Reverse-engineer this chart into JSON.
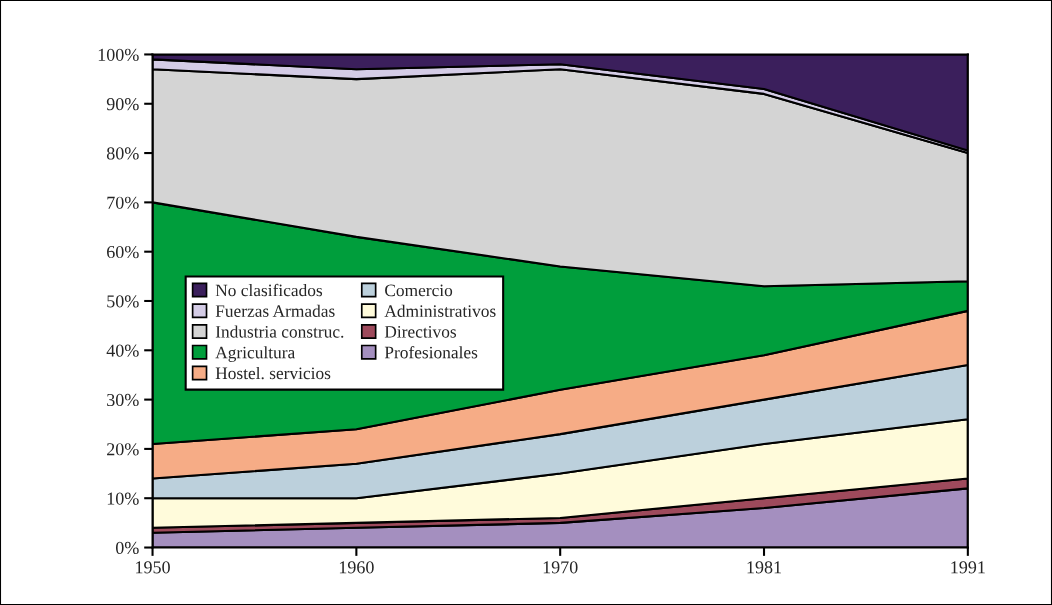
{
  "chart_data": {
    "type": "area",
    "stacked": true,
    "categories": [
      "1950",
      "1960",
      "1970",
      "1981",
      "1991"
    ],
    "series": [
      {
        "name": "Profesionales",
        "color": "#a48fbf",
        "values": [
          3,
          4,
          5,
          8,
          12
        ]
      },
      {
        "name": "Directivos",
        "color": "#9e4a5c",
        "values": [
          1,
          1,
          1,
          2,
          2
        ]
      },
      {
        "name": "Administrativos",
        "color": "#fffbdb",
        "values": [
          6,
          5,
          9,
          11,
          12
        ]
      },
      {
        "name": "Comercio",
        "color": "#bcd0dc",
        "values": [
          4,
          7,
          8,
          9,
          11
        ]
      },
      {
        "name": "Hostel. servicios",
        "color": "#f6ac86",
        "values": [
          7,
          7,
          9,
          9,
          11
        ]
      },
      {
        "name": "Agricultura",
        "color": "#009e3c",
        "values": [
          49,
          39,
          25,
          14,
          6
        ]
      },
      {
        "name": "Industria construc.",
        "color": "#d4d4d4",
        "values": [
          27,
          32,
          40,
          39,
          26
        ]
      },
      {
        "name": "Fuerzas Armadas",
        "color": "#d4cce6",
        "values": [
          2,
          2,
          1,
          1,
          0.5
        ]
      },
      {
        "name": "No clasificados",
        "color": "#3b1f5c",
        "values": [
          1,
          3,
          2,
          7,
          19.5
        ]
      }
    ],
    "ylim": [
      0,
      100
    ],
    "yticks": [
      {
        "value": 0,
        "label": "0%"
      },
      {
        "value": 10,
        "label": "10%"
      },
      {
        "value": 20,
        "label": "20%"
      },
      {
        "value": 30,
        "label": "30%"
      },
      {
        "value": 40,
        "label": "40%"
      },
      {
        "value": 50,
        "label": "50%"
      },
      {
        "value": 60,
        "label": "60%"
      },
      {
        "value": 70,
        "label": "70%"
      },
      {
        "value": 80,
        "label": "80%"
      },
      {
        "value": 90,
        "label": "90%"
      },
      {
        "value": 100,
        "label": "100%"
      }
    ],
    "grid": false,
    "legend": "left"
  }
}
